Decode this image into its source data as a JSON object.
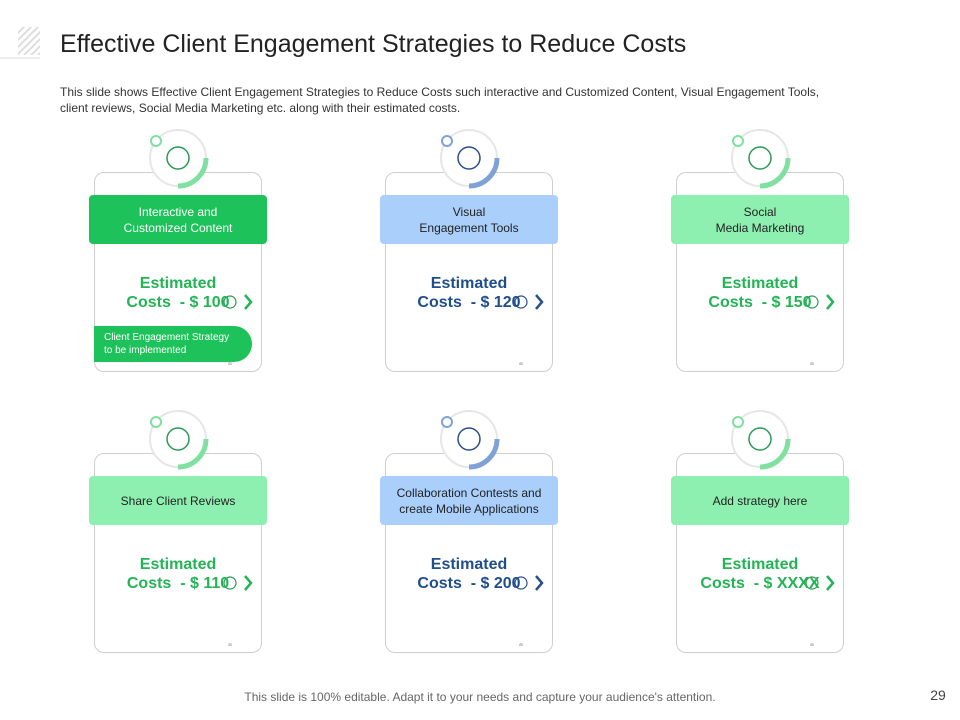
{
  "header": {
    "title": "Effective Client Engagement Strategies to Reduce Costs",
    "description": [
      "This slide shows Effective  Client Engagement  Strategies to Reduce Costs such interactive  and Customized Content, Visual Engagement Tools,",
      "client reviews,  Social Media Marketing etc. along with their estimated costs."
    ]
  },
  "cards": [
    {
      "label": [
        "Interactive  and",
        "Customized Content"
      ],
      "cost_heading": "Estimated",
      "cost": "Costs  - $ 100",
      "tag": [
        "Client Engagement Strategy",
        "to be implemented"
      ]
    },
    {
      "label": [
        "Visual",
        "Engagement Tools"
      ],
      "cost_heading": "Estimated",
      "cost": "Costs  - $ 120"
    },
    {
      "label": [
        "Social",
        "Media Marketing"
      ],
      "cost_heading": "Estimated",
      "cost": "Costs  - $ 150"
    },
    {
      "label": [
        "Share Client Reviews"
      ],
      "cost_heading": "Estimated",
      "cost": "Costs  - $ 110"
    },
    {
      "label": [
        "Collaboration Contests and",
        "create Mobile Applications"
      ],
      "cost_heading": "Estimated",
      "cost": "Costs  - $ 200"
    },
    {
      "label": [
        "Add strategy here"
      ],
      "cost_heading": "Estimated",
      "cost": "Costs  - $ XXXX"
    }
  ],
  "footer": {
    "text": "This slide is 100% editable. Adapt it to your needs and capture your audience's attention.",
    "page_number": "29"
  }
}
